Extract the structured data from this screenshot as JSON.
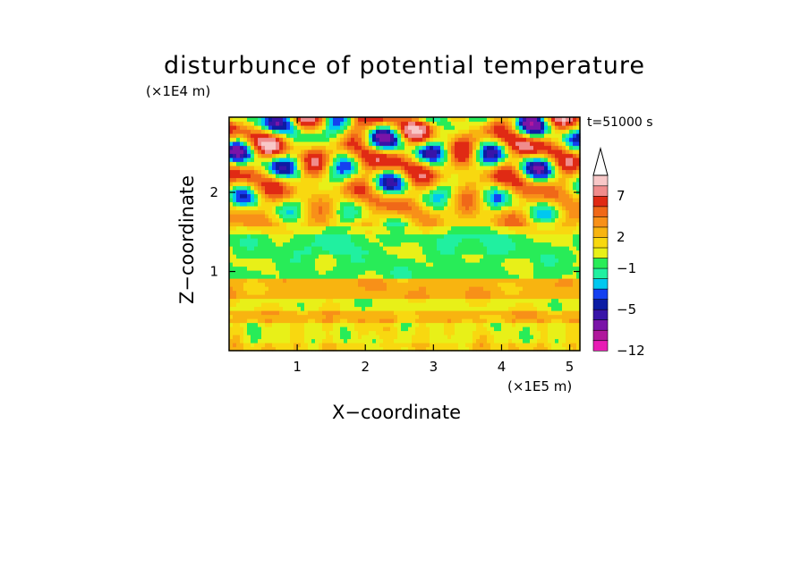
{
  "chart_data": {
    "type": "heatmap",
    "title": "disturbunce of potential temperature",
    "xlabel": "X−coordinate",
    "ylabel": "Z−coordinate",
    "x_unit": "(×1E5 m)",
    "y_unit": "(×1E4 m)",
    "annotation": "t=51000 s",
    "xlim": [
      0,
      5.15
    ],
    "ylim": [
      0,
      2.95
    ],
    "x_ticks": [
      1,
      2,
      3,
      4,
      5
    ],
    "y_ticks": [
      1,
      2
    ],
    "colorbar": {
      "levels": [
        -12,
        -10,
        -8,
        -6,
        -5,
        -4,
        -3,
        -2,
        -1,
        0,
        1,
        2,
        3,
        4,
        5,
        7,
        9,
        11
      ],
      "tick_labels": [
        "−12",
        "−5",
        "−1",
        "2",
        "7"
      ],
      "tick_values": [
        -12,
        -5,
        -1,
        2,
        7
      ],
      "colors": [
        "#e81cb4",
        "#b0189c",
        "#7a14a8",
        "#3814a8",
        "#0c1ca4",
        "#1440f0",
        "#00c8f0",
        "#20f0a0",
        "#28ec58",
        "#e8f018",
        "#f8d810",
        "#f8b410",
        "#f89018",
        "#f06818",
        "#e02a14",
        "#f08c8c",
        "#f8c8c8"
      ],
      "extend": "max"
    }
  }
}
